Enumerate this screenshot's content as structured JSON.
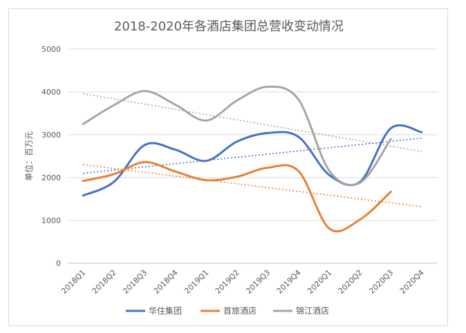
{
  "chart_data": {
    "type": "line",
    "title": "2018-2020年各酒店集团总营收变动情况",
    "xlabel": "",
    "ylabel": "单位：百万元",
    "ylim": [
      0,
      5000
    ],
    "yticks": [
      0,
      1000,
      2000,
      3000,
      4000,
      5000
    ],
    "categories": [
      "2018Q1",
      "2018Q2",
      "2018Q3",
      "2018Q4",
      "2019Q1",
      "2019Q2",
      "2019Q3",
      "2019Q4",
      "2020Q1",
      "2020Q2",
      "2020Q3",
      "2020Q4"
    ],
    "series": [
      {
        "name": "华住集团",
        "color": "#4472c4",
        "values": [
          1580,
          1900,
          2760,
          2650,
          2390,
          2840,
          3040,
          2950,
          2060,
          1900,
          3150,
          3060
        ],
        "trend": [
          2100,
          2920
        ]
      },
      {
        "name": "首旅酒店",
        "color": "#ed7d31",
        "values": [
          1920,
          2080,
          2360,
          2140,
          1940,
          2020,
          2230,
          2150,
          810,
          1020,
          1670,
          null
        ],
        "trend": [
          2300,
          1320
        ]
      },
      {
        "name": "锦江酒店",
        "color": "#a5a5a5",
        "values": [
          3250,
          3690,
          4020,
          3700,
          3330,
          3800,
          4120,
          3820,
          2160,
          1880,
          2900,
          null
        ],
        "trend": [
          3960,
          2610
        ]
      }
    ],
    "grid": true,
    "legend": "bottom",
    "trendlines": "dotted linear"
  }
}
